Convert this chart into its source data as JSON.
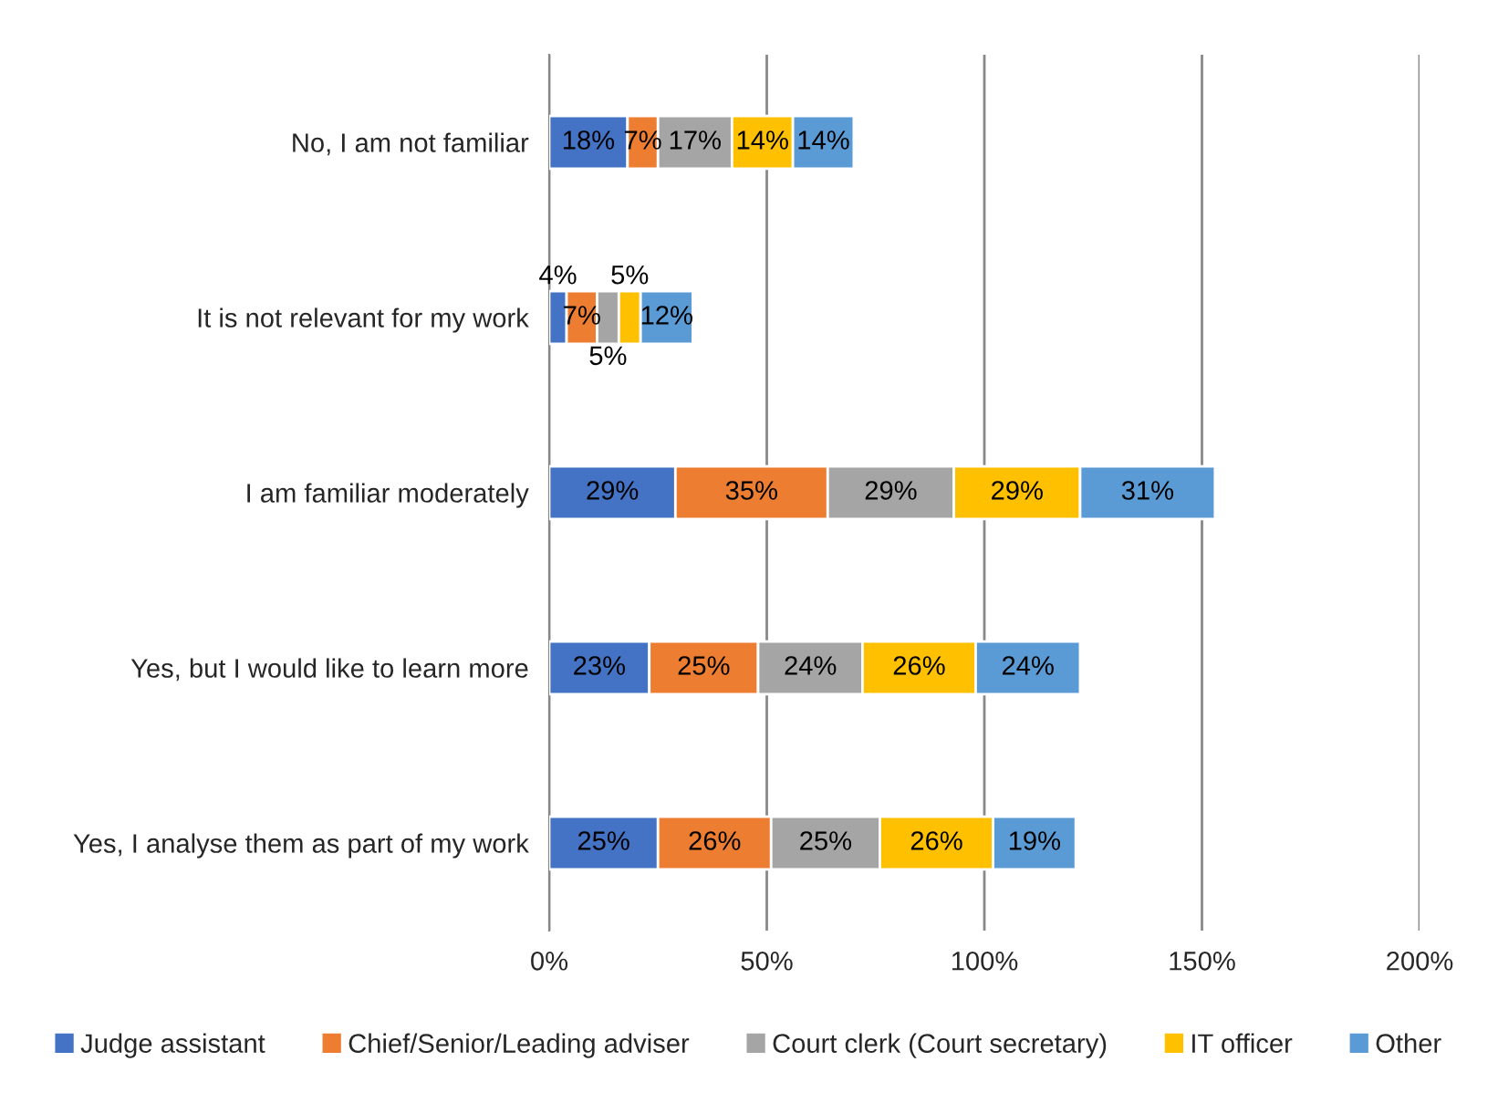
{
  "chart_data": {
    "type": "bar",
    "orientation": "horizontal",
    "stacked": true,
    "categories": [
      "No, I am not familiar",
      "It is not relevant for my work",
      "I am familiar moderately",
      "Yes, but I would like to learn more",
      "Yes, I analyse them as part of my work"
    ],
    "series": [
      {
        "name": "Judge assistant",
        "color": "#4472c4",
        "values": [
          18,
          4,
          29,
          23,
          25
        ],
        "value_labels": [
          "18%",
          "4%",
          "29%",
          "23%",
          "25%"
        ]
      },
      {
        "name": "Chief/Senior/Leading adviser",
        "color": "#ed7d31",
        "values": [
          7,
          7,
          35,
          25,
          26
        ],
        "value_labels": [
          "7%",
          "7%",
          "35%",
          "25%",
          "26%"
        ]
      },
      {
        "name": "Court clerk (Court secretary)",
        "color": "#a5a5a5",
        "values": [
          17,
          5,
          29,
          24,
          25
        ],
        "value_labels": [
          "17%",
          "5%",
          "29%",
          "24%",
          "25%"
        ]
      },
      {
        "name": "IT officer",
        "color": "#ffc000",
        "values": [
          14,
          5,
          29,
          26,
          26
        ],
        "value_labels": [
          "14%",
          "5%",
          "29%",
          "26%",
          "26%"
        ]
      },
      {
        "name": "Other",
        "color": "#5b9bd5",
        "values": [
          14,
          12,
          31,
          24,
          19
        ],
        "value_labels": [
          "14%",
          "12%",
          "31%",
          "24%",
          "19%"
        ]
      }
    ],
    "xlim": [
      0,
      200
    ],
    "xticks": [
      {
        "value": 0,
        "label": "0%"
      },
      {
        "value": 50,
        "label": "50%"
      },
      {
        "value": 100,
        "label": "100%"
      },
      {
        "value": 150,
        "label": "150%"
      },
      {
        "value": 200,
        "label": "200%"
      }
    ],
    "grid": "x",
    "legend": "bottom"
  }
}
